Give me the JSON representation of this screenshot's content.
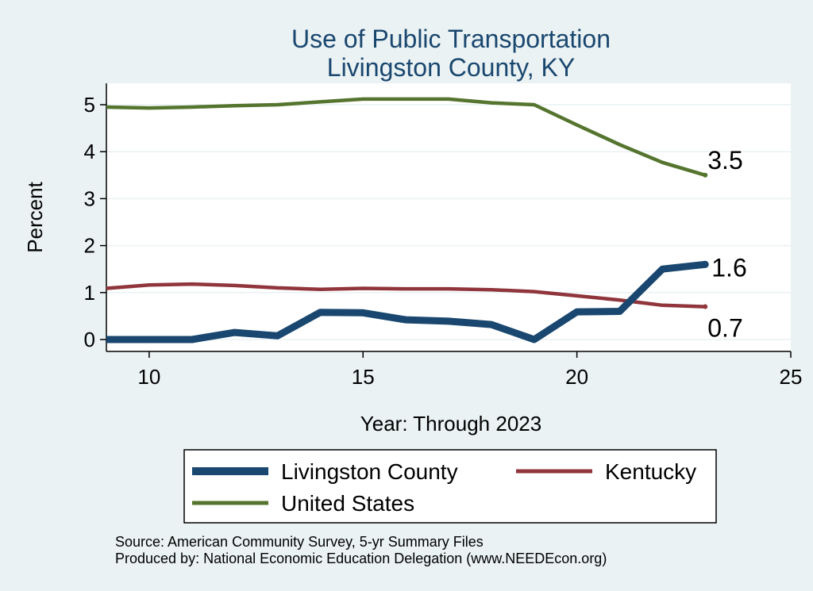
{
  "chart_data": {
    "type": "line",
    "title": "Use of Public Transportation",
    "subtitle": "Livingston County, KY",
    "xlabel": "Year: Through 2023",
    "ylabel": "Percent",
    "xlim": [
      9,
      25
    ],
    "ylim": [
      0,
      5
    ],
    "x_ticks": [
      10,
      15,
      20,
      25
    ],
    "y_ticks": [
      0,
      1,
      2,
      3,
      4,
      5
    ],
    "grid": true,
    "legend_position": "bottom",
    "x": [
      9,
      10,
      11,
      12,
      13,
      14,
      15,
      16,
      17,
      18,
      19,
      20,
      21,
      22,
      23
    ],
    "series": [
      {
        "name": "Livingston County",
        "color": "#1a476f",
        "values": [
          0.0,
          0.0,
          0.0,
          0.15,
          0.08,
          0.58,
          0.57,
          0.42,
          0.39,
          0.32,
          0.0,
          0.59,
          0.6,
          1.5,
          1.6
        ],
        "end_label": "1.6"
      },
      {
        "name": "Kentucky",
        "color": "#90353b",
        "values": [
          1.09,
          1.16,
          1.18,
          1.15,
          1.1,
          1.07,
          1.09,
          1.08,
          1.08,
          1.06,
          1.02,
          0.93,
          0.84,
          0.73,
          0.7
        ],
        "end_label": "0.7"
      },
      {
        "name": "United States",
        "color": "#55752f",
        "values": [
          4.95,
          4.93,
          4.95,
          4.98,
          5.0,
          5.06,
          5.12,
          5.12,
          5.12,
          5.04,
          5.0,
          4.57,
          4.15,
          3.77,
          3.5
        ],
        "end_label": "3.5"
      }
    ],
    "source_note": "Source: American Community Survey, 5-yr Summary Files",
    "produced_note": "Produced by: National Economic Education Delegation (www.NEEDEcon.org)"
  }
}
